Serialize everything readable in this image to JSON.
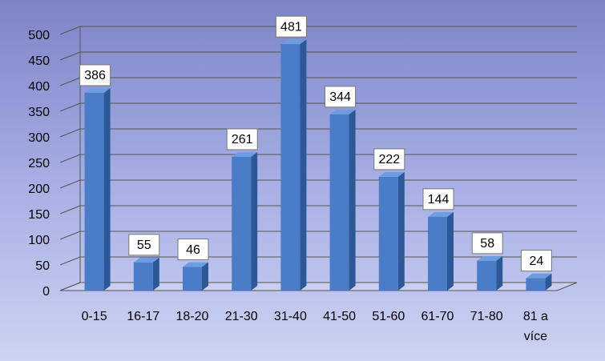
{
  "chart_data": {
    "type": "bar",
    "categories": [
      "0-15",
      "16-17",
      "18-20",
      "21-30",
      "31-40",
      "41-50",
      "51-60",
      "61-70",
      "71-80",
      "81 a více"
    ],
    "values": [
      386,
      55,
      46,
      261,
      481,
      344,
      222,
      144,
      58,
      24
    ],
    "color": "#4a7cc8",
    "ylim": [
      0,
      500
    ],
    "yticks": [
      0,
      50,
      100,
      150,
      200,
      250,
      300,
      350,
      400,
      450,
      500
    ],
    "grid": true
  }
}
